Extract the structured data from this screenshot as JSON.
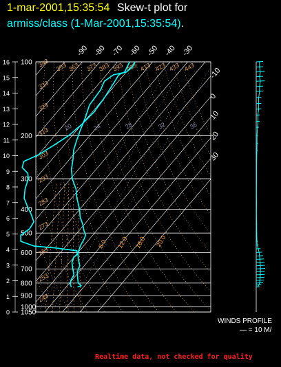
{
  "header": {
    "date_time": "1-mar-2001,15:35:54",
    "plot_title": "Skew-t plot for",
    "dataset_label": "armiss/class (1-Mar-2001,15:35:54)",
    "dataset_suffix": "."
  },
  "chart_data": {
    "type": "line",
    "title": "Skew-t plot for",
    "pressure_levels": [
      100,
      200,
      300,
      400,
      500,
      600,
      700,
      800,
      900,
      1000,
      1050
    ],
    "pressure_tick_labels": [
      "100",
      "200",
      "300",
      "400",
      "500",
      "600",
      "700",
      "800",
      "900",
      "1000",
      "1050"
    ],
    "height_ticks_km": [
      0,
      1,
      2,
      3,
      4,
      5,
      6,
      7,
      8,
      9,
      10,
      11,
      12,
      13,
      14,
      15,
      16
    ],
    "height_tick_labels": [
      "0",
      "1",
      "2",
      "3",
      "4",
      "5",
      "6",
      "7",
      "8",
      "9",
      "10",
      "11",
      "12",
      "13",
      "14",
      "15",
      "16"
    ],
    "top_temperature_labels": [
      "-90",
      "-80",
      "-70",
      "-60",
      "-50",
      "-40",
      "-30"
    ],
    "right_temperature_labels": [
      "-20",
      "-10",
      "0",
      "10",
      "20",
      "30"
    ],
    "dry_adiabat_labels": [
      "243",
      "253",
      "263",
      "273",
      "283",
      "293",
      "303",
      "313",
      "323",
      "333",
      "343",
      "353",
      "363",
      "373",
      "383",
      "393",
      "403",
      "413",
      "423",
      "433",
      "443"
    ],
    "mixing_ratio_labels": [
      "20",
      "24",
      "28",
      "32",
      "36"
    ],
    "moist_adiabat_labels": [
      "8.0",
      "12.0",
      "16.0",
      "20.0"
    ],
    "series": [
      {
        "name": "temperature",
        "color": "#00ffff",
        "points": [
          {
            "p": 830,
            "t": 16.5
          },
          {
            "p": 820,
            "t": 18
          },
          {
            "p": 800,
            "t": 15
          },
          {
            "p": 760,
            "t": 12
          },
          {
            "p": 720,
            "t": 9
          },
          {
            "p": 680,
            "t": 7.5
          },
          {
            "p": 640,
            "t": 3.5
          },
          {
            "p": 600,
            "t": 0
          },
          {
            "p": 560,
            "t": -2
          },
          {
            "p": 530,
            "t": -3
          },
          {
            "p": 510,
            "t": -4
          },
          {
            "p": 490,
            "t": -7
          },
          {
            "p": 460,
            "t": -11
          },
          {
            "p": 430,
            "t": -16
          },
          {
            "p": 400,
            "t": -20
          },
          {
            "p": 360,
            "t": -27
          },
          {
            "p": 330,
            "t": -32
          },
          {
            "p": 300,
            "t": -39
          },
          {
            "p": 275,
            "t": -44
          },
          {
            "p": 250,
            "t": -48
          },
          {
            "p": 230,
            "t": -52
          },
          {
            "p": 210,
            "t": -55
          },
          {
            "p": 190,
            "t": -58
          },
          {
            "p": 170,
            "t": -61
          },
          {
            "p": 150,
            "t": -65
          },
          {
            "p": 130,
            "t": -66
          },
          {
            "p": 120,
            "t": -68
          },
          {
            "p": 113,
            "t": -66
          },
          {
            "p": 110,
            "t": -60
          },
          {
            "p": 105,
            "t": -59
          },
          {
            "p": 100,
            "t": -60
          }
        ]
      },
      {
        "name": "dewpoint",
        "color": "#00ffff",
        "points": [
          {
            "p": 830,
            "t": 13
          },
          {
            "p": 810,
            "t": 11
          },
          {
            "p": 780,
            "t": 9.5
          },
          {
            "p": 740,
            "t": 8.5
          },
          {
            "p": 700,
            "t": 5
          },
          {
            "p": 660,
            "t": 1.5
          },
          {
            "p": 630,
            "t": 0
          },
          {
            "p": 610,
            "t": 0.5
          },
          {
            "p": 590,
            "t": -1.5
          },
          {
            "p": 575,
            "t": -15
          },
          {
            "p": 565,
            "t": -28
          },
          {
            "p": 540,
            "t": -38
          },
          {
            "p": 510,
            "t": -41
          },
          {
            "p": 480,
            "t": -39
          },
          {
            "p": 450,
            "t": -40
          },
          {
            "p": 420,
            "t": -45
          },
          {
            "p": 390,
            "t": -51
          },
          {
            "p": 360,
            "t": -57
          },
          {
            "p": 330,
            "t": -61
          },
          {
            "p": 300,
            "t": -64
          },
          {
            "p": 285,
            "t": -67
          },
          {
            "p": 270,
            "t": -73
          },
          {
            "p": 255,
            "t": -75
          },
          {
            "p": 240,
            "t": -70
          },
          {
            "p": 220,
            "t": -66
          },
          {
            "p": 200,
            "t": -62
          },
          {
            "p": 180,
            "t": -60
          },
          {
            "p": 160,
            "t": -59
          },
          {
            "p": 140,
            "t": -60
          },
          {
            "p": 120,
            "t": -62
          },
          {
            "p": 113,
            "t": -63
          },
          {
            "p": 110,
            "t": -61
          },
          {
            "p": 105,
            "t": -62
          },
          {
            "p": 100,
            "t": -63
          }
        ]
      }
    ],
    "winds_profile": {
      "label": "WINDS PROFILE",
      "scale_label": "— = 10 M/",
      "color": "#00ffff",
      "barbs": [
        {
          "p": 100,
          "speed": 4
        },
        {
          "p": 105,
          "speed": 4
        },
        {
          "p": 110,
          "speed": 5
        },
        {
          "p": 115,
          "speed": 4
        },
        {
          "p": 120,
          "speed": 5
        },
        {
          "p": 126,
          "speed": 4
        },
        {
          "p": 132,
          "speed": 4
        },
        {
          "p": 140,
          "speed": 3
        },
        {
          "p": 148,
          "speed": 3
        },
        {
          "p": 156,
          "speed": 3
        },
        {
          "p": 165,
          "speed": 2
        },
        {
          "p": 175,
          "speed": 2
        },
        {
          "p": 185,
          "speed": 1.5
        },
        {
          "p": 200,
          "speed": 1
        },
        {
          "p": 215,
          "speed": 1
        },
        {
          "p": 230,
          "speed": 0.8
        },
        {
          "p": 250,
          "speed": 0.5
        },
        {
          "p": 270,
          "speed": 0.4
        },
        {
          "p": 300,
          "speed": 0.4
        },
        {
          "p": 340,
          "speed": 0.3
        },
        {
          "p": 380,
          "speed": 0.4
        },
        {
          "p": 420,
          "speed": 0.3
        },
        {
          "p": 460,
          "speed": 0.5
        },
        {
          "p": 500,
          "speed": 0.6
        },
        {
          "p": 540,
          "speed": 0.9
        },
        {
          "p": 560,
          "speed": 1.2
        },
        {
          "p": 580,
          "speed": 2.5
        },
        {
          "p": 600,
          "speed": 3.5
        },
        {
          "p": 620,
          "speed": 4
        },
        {
          "p": 640,
          "speed": 4.5
        },
        {
          "p": 660,
          "speed": 4.8
        },
        {
          "p": 680,
          "speed": 5
        },
        {
          "p": 700,
          "speed": 5.2
        },
        {
          "p": 720,
          "speed": 5
        },
        {
          "p": 740,
          "speed": 5
        },
        {
          "p": 760,
          "speed": 4.8
        },
        {
          "p": 780,
          "speed": 4.5
        },
        {
          "p": 800,
          "speed": 4
        },
        {
          "p": 815,
          "speed": 3
        },
        {
          "p": 830,
          "speed": 2
        }
      ]
    },
    "colors": {
      "grid": "#ffffff",
      "labels": "#ffffff",
      "dry_adiabat": "#d9a060",
      "mixing_ratio": "#8888aa",
      "moist_adiabat": "#ffa040"
    }
  },
  "footer": {
    "notice": "Realtime data, not checked for quality"
  }
}
